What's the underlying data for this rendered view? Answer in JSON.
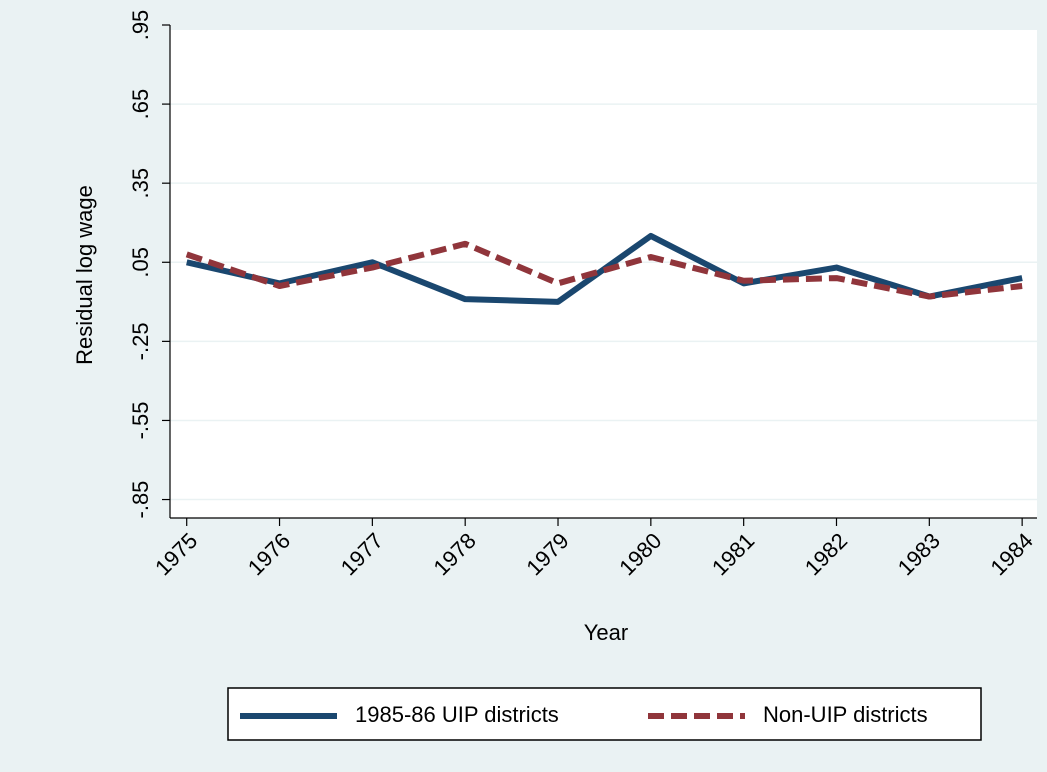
{
  "chart_data": {
    "type": "line",
    "xlabel": "Year",
    "ylabel": "Residual log wage",
    "x": [
      1975,
      1976,
      1977,
      1978,
      1979,
      1980,
      1981,
      1982,
      1983,
      1984
    ],
    "xlim": [
      1974.82,
      1984.16
    ],
    "xticks": [
      1975,
      1976,
      1977,
      1978,
      1979,
      1980,
      1981,
      1982,
      1983,
      1984
    ],
    "ylim": [
      -0.92,
      0.95
    ],
    "yticks": [
      {
        "value": -0.85,
        "label": "-.85"
      },
      {
        "value": -0.55,
        "label": "-.55"
      },
      {
        "value": -0.25,
        "label": "-.25"
      },
      {
        "value": 0.05,
        "label": ".05"
      },
      {
        "value": 0.35,
        "label": ".35"
      },
      {
        "value": 0.65,
        "label": ".65"
      },
      {
        "value": 0.95,
        "label": ".95"
      }
    ],
    "grid": true,
    "legend": "bottom",
    "series": [
      {
        "name": "1985-86 UIP districts",
        "color": "#1a476f",
        "style": "solid",
        "values": [
          0.05,
          -0.03,
          0.05,
          -0.09,
          -0.1,
          0.15,
          -0.03,
          0.03,
          -0.08,
          -0.01
        ]
      },
      {
        "name": "Non-UIP districts",
        "color": "#90353b",
        "style": "dashed",
        "values": [
          0.08,
          -0.04,
          0.03,
          0.12,
          -0.03,
          0.07,
          -0.02,
          -0.01,
          -0.08,
          -0.04
        ]
      }
    ]
  }
}
